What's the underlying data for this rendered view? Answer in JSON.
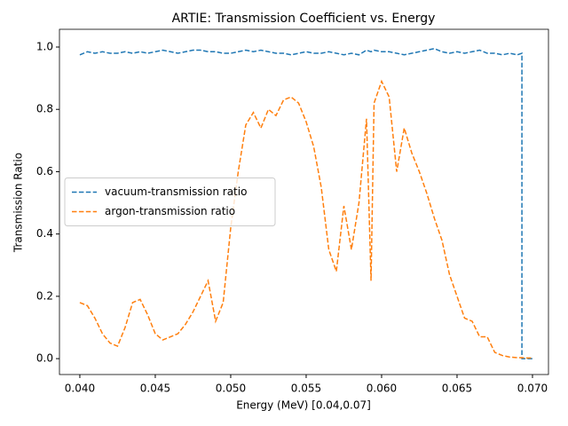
{
  "chart_data": {
    "type": "line",
    "title": "ARTIE: Transmission Coefficient vs. Energy",
    "x_label": "Energy (MeV) [0.04,0.07]",
    "y_label": "Transmission Ratio",
    "x": [
      0.04,
      0.0405,
      0.041,
      0.0415,
      0.042,
      0.0425,
      0.043,
      0.0435,
      0.044,
      0.0445,
      0.045,
      0.0455,
      0.046,
      0.0465,
      0.047,
      0.0475,
      0.048,
      0.0485,
      0.049,
      0.0495,
      0.05,
      0.0505,
      0.051,
      0.0515,
      0.052,
      0.0525,
      0.053,
      0.0535,
      0.054,
      0.0545,
      0.055,
      0.0555,
      0.056,
      0.0565,
      0.057,
      0.0575,
      0.058,
      0.0585,
      0.059,
      0.0593,
      0.0595,
      0.06,
      0.0605,
      0.061,
      0.0615,
      0.062,
      0.0625,
      0.063,
      0.0635,
      0.064,
      0.0645,
      0.065,
      0.0655,
      0.066,
      0.0665,
      0.067,
      0.0675,
      0.068,
      0.0685,
      0.069,
      0.0693,
      0.0693,
      0.0695,
      0.07
    ],
    "series": [
      {
        "name": "vacuum-transmission ratio",
        "color": "#1f77b4",
        "dashed": true,
        "values": [
          0.975,
          0.985,
          0.98,
          0.985,
          0.98,
          0.98,
          0.985,
          0.98,
          0.985,
          0.98,
          0.985,
          0.99,
          0.985,
          0.98,
          0.985,
          0.99,
          0.99,
          0.985,
          0.985,
          0.98,
          0.98,
          0.985,
          0.99,
          0.985,
          0.99,
          0.985,
          0.98,
          0.98,
          0.975,
          0.98,
          0.985,
          0.98,
          0.98,
          0.985,
          0.98,
          0.975,
          0.98,
          0.975,
          0.99,
          0.985,
          0.99,
          0.985,
          0.985,
          0.98,
          0.975,
          0.98,
          0.985,
          0.99,
          0.995,
          0.985,
          0.98,
          0.985,
          0.98,
          0.985,
          0.99,
          0.98,
          0.98,
          0.975,
          0.98,
          0.975,
          0.98,
          0,
          0,
          0
        ]
      },
      {
        "name": "argon-transmission ratio",
        "color": "#ff7f0e",
        "dashed": true,
        "values": [
          0.18,
          0.17,
          0.13,
          0.08,
          0.05,
          0.04,
          0.1,
          0.18,
          0.19,
          0.14,
          0.08,
          0.06,
          0.07,
          0.08,
          0.11,
          0.15,
          0.2,
          0.25,
          0.12,
          0.18,
          0.42,
          0.6,
          0.75,
          0.79,
          0.74,
          0.8,
          0.78,
          0.83,
          0.84,
          0.82,
          0.76,
          0.68,
          0.55,
          0.35,
          0.28,
          0.49,
          0.35,
          0.5,
          0.77,
          0.25,
          0.82,
          0.89,
          0.84,
          0.6,
          0.74,
          0.66,
          0.6,
          0.53,
          0.45,
          0.38,
          0.27,
          0.2,
          0.13,
          0.12,
          0.07,
          0.07,
          0.02,
          0.01,
          0.005,
          0.003,
          0.003,
          0.003,
          0.002,
          0.002
        ]
      }
    ],
    "xlim": [
      0.03865,
      0.07106
    ],
    "ylim": [
      -0.051,
      1.057
    ],
    "xticks": [
      {
        "value": 0.04,
        "label": "0.040"
      },
      {
        "value": 0.045,
        "label": "0.045"
      },
      {
        "value": 0.05,
        "label": "0.050"
      },
      {
        "value": 0.055,
        "label": "0.055"
      },
      {
        "value": 0.06,
        "label": "0.060"
      },
      {
        "value": 0.065,
        "label": "0.065"
      },
      {
        "value": 0.07,
        "label": "0.070"
      }
    ],
    "yticks": [
      {
        "value": 0,
        "label": "0.0"
      },
      {
        "value": 0.2,
        "label": "0.2"
      },
      {
        "value": 0.4,
        "label": "0.4"
      },
      {
        "value": 0.6,
        "label": "0.6"
      },
      {
        "value": 0.8,
        "label": "0.8"
      },
      {
        "value": 1,
        "label": "1.0"
      }
    ],
    "legend": "center left"
  }
}
